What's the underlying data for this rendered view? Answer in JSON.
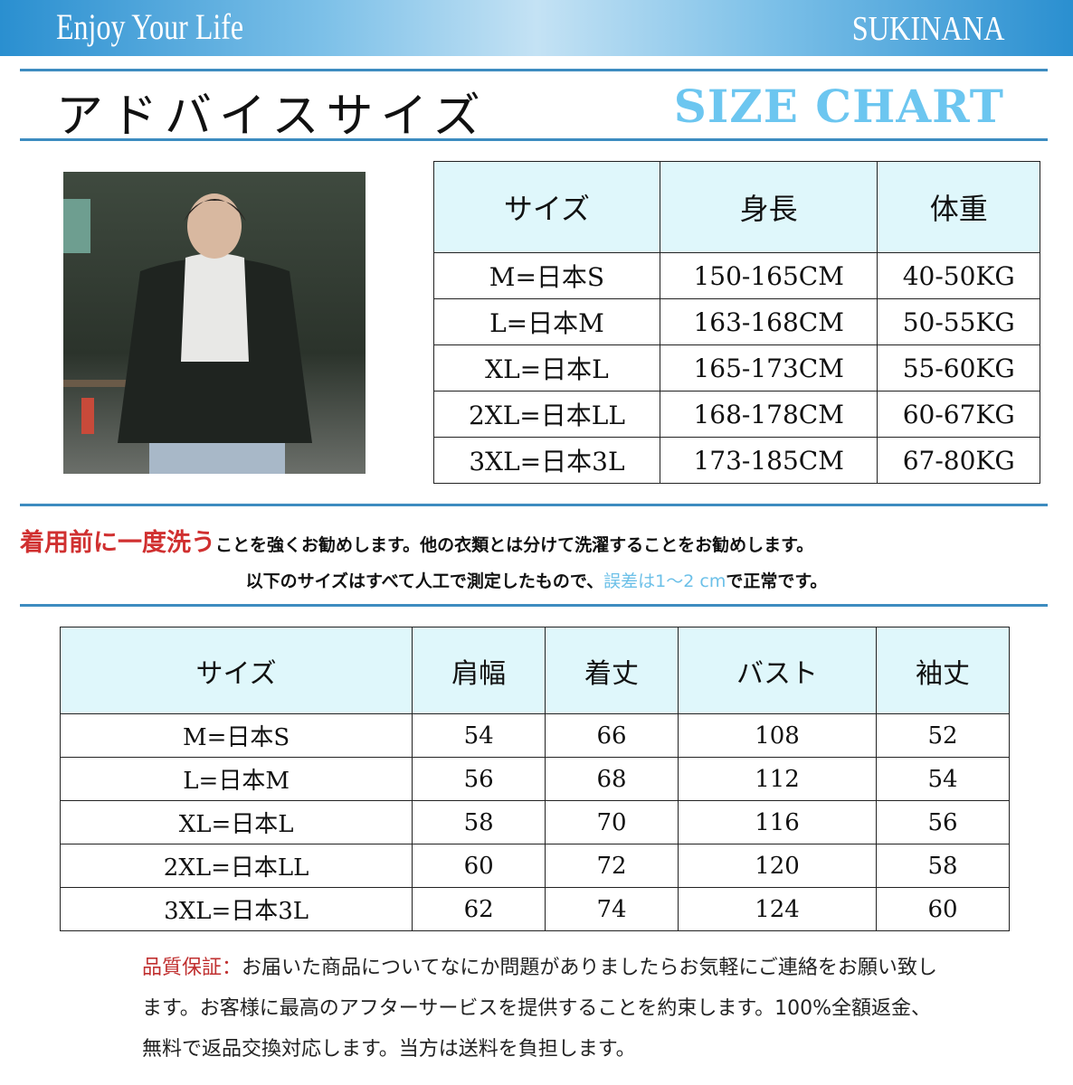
{
  "banner": {
    "left": "Enjoy Your Life",
    "brand": "SUKINANA"
  },
  "title": {
    "jp": "アドバイスサイズ",
    "en": "SIZE CHART"
  },
  "advice_table": {
    "headers": [
      "サイズ",
      "身長",
      "体重"
    ],
    "rows": [
      [
        "M=日本S",
        "150-165CM",
        "40-50KG"
      ],
      [
        "L=日本M",
        "163-168CM",
        "50-55KG"
      ],
      [
        "XL=日本L",
        "165-173CM",
        "55-60KG"
      ],
      [
        "2XL=日本LL",
        "168-178CM",
        "60-67KG"
      ],
      [
        "3XL=日本3L",
        "173-185CM",
        "67-80KG"
      ]
    ]
  },
  "notes": {
    "wash_red": "着用前に一度洗う",
    "wash_rest": "ことを強くお勧めします。他の衣類とは分けて洗濯することをお勧めします。",
    "measure_pre": "以下のサイズはすべて人工で測定したもので、",
    "measure_blue": "誤差は1～2 cm",
    "measure_post": "で正常です。"
  },
  "size_table": {
    "headers": [
      "サイズ",
      "肩幅",
      "着丈",
      "バスト",
      "袖丈"
    ],
    "rows": [
      [
        "M=日本S",
        "54",
        "66",
        "108",
        "52"
      ],
      [
        "L=日本M",
        "56",
        "68",
        "112",
        "54"
      ],
      [
        "XL=日本L",
        "58",
        "70",
        "116",
        "56"
      ],
      [
        "2XL=日本LL",
        "60",
        "72",
        "120",
        "58"
      ],
      [
        "3XL=日本3L",
        "62",
        "74",
        "124",
        "60"
      ]
    ]
  },
  "quality": {
    "label": "品質保証：",
    "text": "お届いた商品についてなにか問題がありましたらお気軽にご連絡をお願い致します。お客様に最高のアフターサービスを提供することを約束します。100%全額返金、無料で返品交換対応します。当方は送料を負担します。"
  },
  "colors": {
    "banner": "#2a8fd0",
    "accent": "#6cc6f0",
    "header_cell": "#dff7fb",
    "red": "#d03030"
  }
}
